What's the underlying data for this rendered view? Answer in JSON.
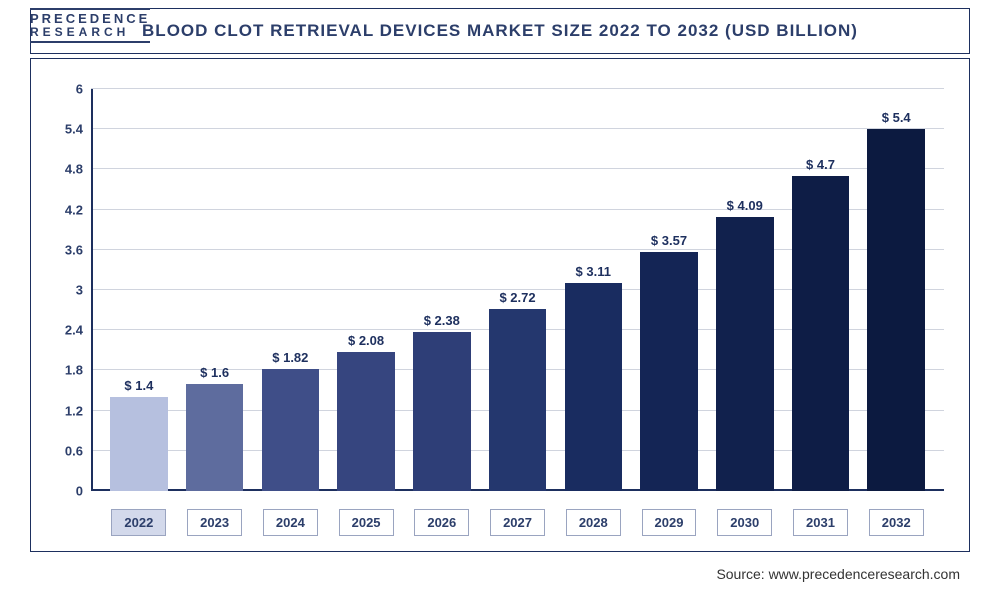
{
  "logo": {
    "line1": "PRECEDENCE",
    "line2": "RESEARCH"
  },
  "title": "BLOOD CLOT RETRIEVAL DEVICES MARKET SIZE 2022 TO 2032 (USD BILLION)",
  "source": "Source: www.precedenceresearch.com",
  "chart": {
    "type": "bar",
    "ylim": [
      0,
      6
    ],
    "ytick_step": 0.6,
    "yticks": [
      "0",
      "0.6",
      "1.2",
      "1.8",
      "2.4",
      "3",
      "3.6",
      "4.2",
      "4.8",
      "5.4",
      "6"
    ],
    "grid_color": "#d0d4de",
    "axis_color": "#1d2f5e",
    "background_color": "#ffffff",
    "label_fontsize": 13,
    "title_fontsize": 17,
    "bar_width": 0.76,
    "highlight_year": "2022",
    "categories": [
      "2022",
      "2023",
      "2024",
      "2025",
      "2026",
      "2027",
      "2028",
      "2029",
      "2030",
      "2031",
      "2032"
    ],
    "values": [
      1.4,
      1.6,
      1.82,
      2.08,
      2.38,
      2.72,
      3.11,
      3.57,
      4.09,
      4.7,
      5.4
    ],
    "value_labels": [
      "$ 1.4",
      "$ 1.6",
      "$ 1.82",
      "$ 2.08",
      "$ 2.38",
      "$ 2.72",
      "$ 3.11",
      "$ 3.57",
      "$ 4.09",
      "$ 4.7",
      "$ 5.4"
    ],
    "bar_colors": [
      "#b6c0df",
      "#5e6c9e",
      "#3f4e88",
      "#36457f",
      "#2e3e77",
      "#24376e",
      "#192c60",
      "#142555",
      "#11214d",
      "#0e1d46",
      "#0c1a40"
    ]
  }
}
